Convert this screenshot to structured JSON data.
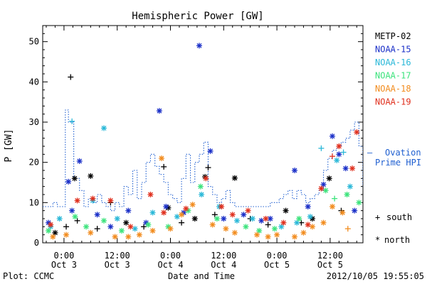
{
  "chart_data": {
    "type": "scatter",
    "title": "Hemispheric Power [GW]",
    "ylabel": "P [GW]",
    "xlabel": "Date and Time",
    "ylim": [
      0,
      54
    ],
    "yticks": [
      0,
      10,
      20,
      30,
      40,
      50
    ],
    "xlim_hours": [
      -4.8,
      67.4
    ],
    "xticks": [
      {
        "hours": 0,
        "time": "0:00",
        "day": "Oct 3"
      },
      {
        "hours": 12,
        "time": "12:00",
        "day": "Oct 3"
      },
      {
        "hours": 24,
        "time": "0:00",
        "day": "Oct 4"
      },
      {
        "hours": 36,
        "time": "12:00",
        "day": "Oct 4"
      },
      {
        "hours": 48,
        "time": "0:00",
        "day": "Oct 5"
      },
      {
        "hours": 60,
        "time": "12:00",
        "day": "Oct 5"
      }
    ],
    "grid": false,
    "legend_position": "right",
    "markers": {
      "south": "+",
      "north": "*"
    },
    "series": [
      {
        "name": "METP-02",
        "color": "#000000",
        "points": [
          [
            1.5,
            41.2,
            "south"
          ],
          [
            2.4,
            16.0,
            "north"
          ],
          [
            3.0,
            5.5,
            "south"
          ],
          [
            6.0,
            16.6,
            "north"
          ],
          [
            7.5,
            3.5,
            "south"
          ],
          [
            10.5,
            10.0,
            "south"
          ],
          [
            22.5,
            18.9,
            "south"
          ],
          [
            23.5,
            8.7,
            "north"
          ],
          [
            29.5,
            6.0,
            "north"
          ],
          [
            31.8,
            16.4,
            "north"
          ],
          [
            32.5,
            18.7,
            "south"
          ],
          [
            38.5,
            16.1,
            "north"
          ],
          [
            42.0,
            6.0,
            "south"
          ],
          [
            50.0,
            8.0,
            "north"
          ],
          [
            56.0,
            6.0,
            "north"
          ],
          [
            59.8,
            16.0,
            "north"
          ],
          [
            62.5,
            8.0,
            "south"
          ],
          [
            -2.0,
            2.5,
            "north"
          ],
          [
            0.5,
            4.0,
            "south"
          ],
          [
            14.0,
            5.0,
            "north"
          ],
          [
            18.0,
            4.0,
            "south"
          ],
          [
            26.5,
            5.0,
            "south"
          ],
          [
            34.0,
            7.0,
            "south"
          ],
          [
            46.0,
            4.5,
            "south"
          ],
          [
            53.5,
            5.0,
            "south"
          ]
        ]
      },
      {
        "name": "NOAA-15",
        "color": "#1a2fc8",
        "points": [
          [
            21.5,
            32.8,
            "north"
          ],
          [
            30.5,
            49.0,
            "north"
          ],
          [
            33.0,
            22.8,
            "north"
          ],
          [
            3.5,
            20.3,
            "north"
          ],
          [
            1.0,
            15.2,
            "north"
          ],
          [
            23.0,
            9.0,
            "north"
          ],
          [
            40.5,
            7.0,
            "north"
          ],
          [
            52.0,
            18.0,
            "north"
          ],
          [
            60.5,
            26.5,
            "north"
          ],
          [
            62.0,
            22.0,
            "north"
          ],
          [
            58.5,
            14.5,
            "north"
          ],
          [
            65.5,
            8.0,
            "north"
          ],
          [
            7.5,
            7.0,
            "north"
          ],
          [
            14.5,
            8.0,
            "north"
          ],
          [
            -3.5,
            5.0,
            "north"
          ],
          [
            10.5,
            4.0,
            "north"
          ],
          [
            27.0,
            7.5,
            "north"
          ],
          [
            36.0,
            6.0,
            "north"
          ],
          [
            46.5,
            6.0,
            "north"
          ],
          [
            55.0,
            9.0,
            "north"
          ],
          [
            63.5,
            18.5,
            "north"
          ],
          [
            44.5,
            5.5,
            "north"
          ],
          [
            18.5,
            5.0,
            "north"
          ],
          [
            1.8,
            8.0,
            "north"
          ]
        ]
      },
      {
        "name": "NOAA-16",
        "color": "#2ab8d8",
        "points": [
          [
            1.8,
            30.2,
            "south"
          ],
          [
            9.0,
            28.5,
            "north"
          ],
          [
            61.5,
            20.5,
            "north"
          ],
          [
            63.0,
            22.5,
            "south"
          ],
          [
            58.0,
            23.5,
            "south"
          ],
          [
            6.5,
            10.5,
            "north"
          ],
          [
            31.0,
            12.0,
            "north"
          ],
          [
            -3.0,
            4.0,
            "north"
          ],
          [
            12.0,
            6.0,
            "north"
          ],
          [
            20.0,
            7.5,
            "north"
          ],
          [
            25.5,
            6.5,
            "north"
          ],
          [
            35.0,
            9.0,
            "north"
          ],
          [
            42.5,
            6.0,
            "north"
          ],
          [
            49.0,
            4.0,
            "north"
          ],
          [
            55.5,
            6.5,
            "north"
          ],
          [
            64.5,
            14.0,
            "north"
          ],
          [
            16.0,
            3.5,
            "north"
          ],
          [
            39.0,
            5.5,
            "north"
          ],
          [
            -1.0,
            6.0,
            "north"
          ],
          [
            52.5,
            5.0,
            "north"
          ]
        ]
      },
      {
        "name": "NOAA-17",
        "color": "#3ce37c",
        "points": [
          [
            30.8,
            14.0,
            "north"
          ],
          [
            66.5,
            10.0,
            "north"
          ],
          [
            59.0,
            13.0,
            "north"
          ],
          [
            61.0,
            11.0,
            "south"
          ],
          [
            5.0,
            4.0,
            "north"
          ],
          [
            13.0,
            3.0,
            "north"
          ],
          [
            19.0,
            4.5,
            "north"
          ],
          [
            28.0,
            8.0,
            "north"
          ],
          [
            34.5,
            6.0,
            "north"
          ],
          [
            41.0,
            4.0,
            "north"
          ],
          [
            47.5,
            3.5,
            "north"
          ],
          [
            53.0,
            6.0,
            "north"
          ],
          [
            -3.5,
            3.0,
            "north"
          ],
          [
            9.0,
            5.5,
            "north"
          ],
          [
            23.5,
            4.0,
            "north"
          ],
          [
            63.8,
            12.0,
            "north"
          ],
          [
            44.0,
            3.0,
            "north"
          ],
          [
            2.5,
            6.5,
            "north"
          ]
        ]
      },
      {
        "name": "NOAA-18",
        "color": "#f28c1e",
        "points": [
          [
            22.0,
            21.0,
            "north"
          ],
          [
            60.5,
            9.0,
            "north"
          ],
          [
            62.8,
            7.5,
            "north"
          ],
          [
            64.0,
            3.5,
            "south"
          ],
          [
            58.5,
            5.0,
            "north"
          ],
          [
            6.0,
            2.5,
            "north"
          ],
          [
            11.5,
            1.5,
            "north"
          ],
          [
            17.0,
            2.0,
            "north"
          ],
          [
            24.0,
            3.5,
            "north"
          ],
          [
            29.0,
            9.5,
            "north"
          ],
          [
            33.5,
            4.5,
            "north"
          ],
          [
            38.5,
            2.5,
            "north"
          ],
          [
            43.5,
            2.0,
            "north"
          ],
          [
            48.0,
            2.0,
            "north"
          ],
          [
            52.0,
            1.5,
            "north"
          ],
          [
            56.0,
            4.0,
            "north"
          ],
          [
            -2.5,
            1.5,
            "north"
          ],
          [
            0.5,
            2.0,
            "north"
          ],
          [
            20.0,
            3.0,
            "north"
          ],
          [
            36.5,
            3.5,
            "north"
          ],
          [
            46.0,
            1.5,
            "north"
          ],
          [
            54.0,
            2.5,
            "north"
          ],
          [
            14.5,
            1.5,
            "north"
          ],
          [
            26.5,
            7.0,
            "north"
          ]
        ]
      },
      {
        "name": "NOAA-19",
        "color": "#e0301e",
        "points": [
          [
            66.0,
            27.5,
            "north"
          ],
          [
            62.0,
            24.0,
            "north"
          ],
          [
            60.5,
            21.5,
            "south"
          ],
          [
            65.0,
            18.5,
            "north"
          ],
          [
            19.5,
            12.0,
            "north"
          ],
          [
            3.0,
            10.5,
            "north"
          ],
          [
            6.5,
            11.0,
            "north"
          ],
          [
            10.5,
            10.5,
            "north"
          ],
          [
            32.0,
            16.0,
            "north"
          ],
          [
            22.5,
            7.5,
            "north"
          ],
          [
            27.5,
            8.5,
            "north"
          ],
          [
            35.5,
            9.0,
            "north"
          ],
          [
            41.5,
            8.0,
            "north"
          ],
          [
            49.5,
            5.0,
            "north"
          ],
          [
            55.0,
            4.5,
            "north"
          ],
          [
            -3.0,
            4.5,
            "north"
          ],
          [
            15.0,
            4.0,
            "north"
          ],
          [
            45.5,
            6.0,
            "north"
          ],
          [
            58.0,
            13.5,
            "north"
          ],
          [
            38.0,
            7.0,
            "north"
          ]
        ]
      },
      {
        "name": "Ovation Prime HPI",
        "color": "#1f5fd0",
        "style": "dotted-step",
        "x": [
          -4.8,
          -3.5,
          -2.5,
          -1.5,
          -0.5,
          0.3,
          1.0,
          2.2,
          3.5,
          4.5,
          5.5,
          6.5,
          7.5,
          8.5,
          9.5,
          10.5,
          11.5,
          12.5,
          13.5,
          14.5,
          15.5,
          16.5,
          17.5,
          18.5,
          19.5,
          20.5,
          21.5,
          22.5,
          23.5,
          24.5,
          25.5,
          26.5,
          27.5,
          28.5,
          29.5,
          30.5,
          31.5,
          32.5,
          33.5,
          34.5,
          35.5,
          36.5,
          37.5,
          38.5,
          39.5,
          40.5,
          41.5,
          42.5,
          43.5,
          44.5,
          45.5,
          46.5,
          47.5,
          48.5,
          49.5,
          50.5,
          51.5,
          52.5,
          53.5,
          54.5,
          55.5,
          56.5,
          57.5,
          58.5,
          59.5,
          60.5,
          61.5,
          62.5,
          63.5,
          64.5,
          65.5,
          66.5,
          67.4
        ],
        "y": [
          9,
          9,
          10,
          9,
          9,
          33,
          30,
          16,
          13,
          9,
          11,
          10,
          12,
          10,
          9,
          8,
          10,
          9,
          14,
          12,
          18,
          11,
          15,
          20,
          22,
          19,
          17,
          15,
          12,
          11,
          10,
          16,
          22,
          15,
          20,
          22,
          25,
          14,
          12,
          10,
          11,
          13,
          10,
          9,
          9,
          9,
          9,
          9,
          9,
          9,
          9,
          10,
          10,
          11,
          12,
          13,
          11,
          13,
          12,
          10,
          11,
          12,
          13,
          18,
          21,
          23,
          24,
          25,
          26,
          28,
          30,
          24,
          14
        ]
      }
    ]
  },
  "legend": {
    "entries": [
      {
        "label": "METP-02",
        "color": "#000000"
      },
      {
        "label": "NOAA-15",
        "color": "#1a2fc8"
      },
      {
        "label": "NOAA-16",
        "color": "#2ab8d8"
      },
      {
        "label": "NOAA-17",
        "color": "#3ce37c"
      },
      {
        "label": "NOAA-18",
        "color": "#f28c1e"
      },
      {
        "label": "NOAA-19",
        "color": "#e0301e"
      }
    ],
    "model_line1": "Ovation",
    "model_line2": "Prime HPI",
    "model_dash": "–",
    "model_color": "#1f5fd0",
    "south_symbol": "+",
    "south_label": "south",
    "north_symbol": "*",
    "north_label": "north"
  },
  "footer": {
    "plot_source": "Plot: CCMC",
    "timestamp": "2012/10/05 19:55:05"
  }
}
